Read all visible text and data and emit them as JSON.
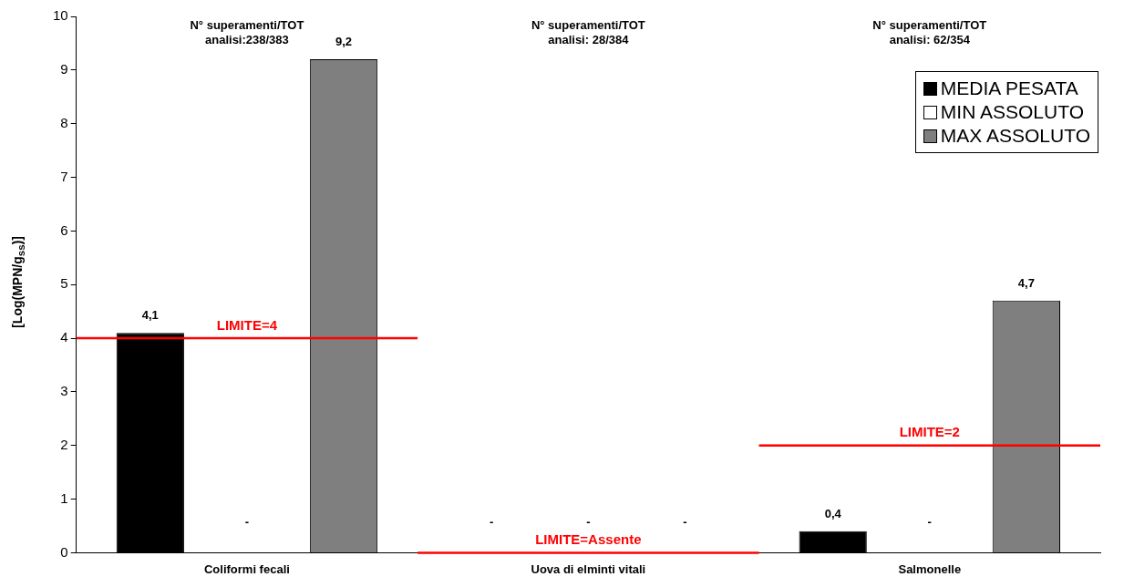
{
  "chart_data": {
    "type": "bar",
    "ylabel": "[Log(MPN/g$_{ss}$)]",
    "categories": [
      "Coliformi fecali",
      "Uova di elminti vitali",
      "Salmonelle"
    ],
    "series": [
      {
        "name": "MEDIA PESATA",
        "color": "#000000",
        "values": [
          4.1,
          null,
          0.4
        ],
        "value_labels": [
          "4,1",
          "-",
          "0,4"
        ]
      },
      {
        "name": "MIN ASSOLUTO",
        "color": "#ffffff",
        "values": [
          null,
          null,
          null
        ],
        "value_labels": [
          "-",
          "-",
          "-"
        ]
      },
      {
        "name": "MAX ASSOLUTO",
        "color": "#7f7f7f",
        "values": [
          9.2,
          null,
          4.7
        ],
        "value_labels": [
          "9,2",
          "-",
          "4,7"
        ]
      }
    ],
    "ylim": [
      0,
      10
    ],
    "yticks": [
      0,
      1,
      2,
      3,
      4,
      5,
      6,
      7,
      8,
      9,
      10
    ],
    "grid": false,
    "legend": "top right",
    "ref_lines": [
      {
        "axis": "y",
        "value": 4,
        "label": "LIMITE=4",
        "color": "#ff0000"
      },
      {
        "axis": "y",
        "value": 0,
        "label": "LIMITE=Assente",
        "color": "#ff0000"
      },
      {
        "axis": "y",
        "value": 2,
        "label": "LIMITE=2",
        "color": "#ff0000"
      }
    ],
    "annotations": [
      "N° superamenti/TOT\nanalisi:238/383",
      "N° superamenti/TOT\nanalisi: 28/384",
      "N° superamenti/TOT\nanalisi: 62/354"
    ]
  }
}
